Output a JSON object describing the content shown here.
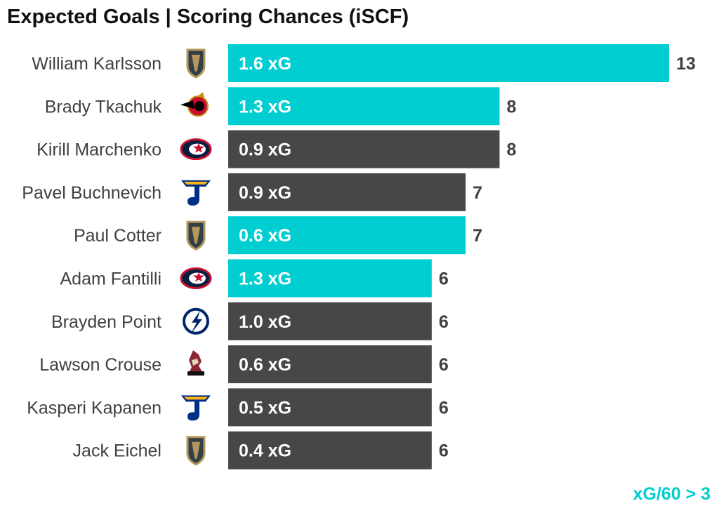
{
  "chart_data": {
    "type": "bar",
    "orientation": "horizontal",
    "title": "Expected Goals | Scoring Chances (iSCF)",
    "categories": [
      "William Karlsson",
      "Brady Tkachuk",
      "Kirill Marchenko",
      "Pavel Buchnevich",
      "Paul Cotter",
      "Adam Fantilli",
      "Brayden Point",
      "Lawson Crouse",
      "Kasperi Kapanen",
      "Jack Eichel"
    ],
    "teams": [
      "vegas-golden-knights-logo",
      "ottawa-senators-logo",
      "columbus-blue-jackets-logo",
      "st-louis-blues-logo",
      "vegas-golden-knights-logo",
      "columbus-blue-jackets-logo",
      "tampa-bay-lightning-logo",
      "arizona-coyotes-logo",
      "st-louis-blues-logo",
      "vegas-golden-knights-logo"
    ],
    "values": [
      13,
      8,
      8,
      7,
      7,
      6,
      6,
      6,
      6,
      6
    ],
    "bar_labels": [
      "1.6 xG",
      "1.3 xG",
      "0.9 xG",
      "0.9 xG",
      "0.6 xG",
      "1.3 xG",
      "1.0 xG",
      "0.6 xG",
      "0.5 xG",
      "0.4 xG"
    ],
    "highlight": [
      true,
      true,
      false,
      false,
      true,
      true,
      false,
      false,
      false,
      false
    ],
    "highlight_label": "xG/60 > 3",
    "xlim": [
      0,
      13
    ],
    "grid": false,
    "colors": {
      "highlight": "#00CED1",
      "default": "#474747"
    }
  }
}
